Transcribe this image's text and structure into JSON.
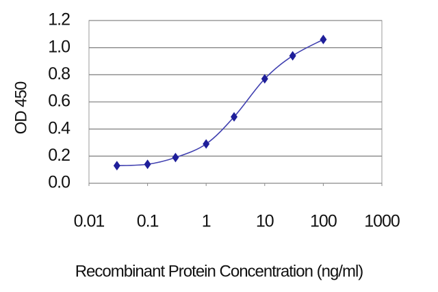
{
  "chart_data": {
    "type": "scatter",
    "x_label": "Recombinant Protein Concentration (ng/ml)",
    "y_label": "OD 450",
    "x": [
      0.03,
      0.1,
      0.3,
      1,
      3,
      10,
      30,
      100
    ],
    "series": [
      {
        "color": "#1f1f9a",
        "values": [
          0.13,
          0.14,
          0.19,
          0.29,
          0.49,
          0.77,
          0.94,
          1.06
        ]
      }
    ],
    "xscale": "log",
    "xlim": [
      0.01,
      1000
    ],
    "xticks": [
      0.01,
      0.1,
      1,
      10,
      100,
      1000
    ],
    "ylim": [
      0,
      1.2
    ],
    "yticks": [
      {
        "value": 0,
        "label": "0.0"
      },
      0.2,
      0.4,
      0.6,
      0.8,
      {
        "value": 1,
        "label": "1.0"
      },
      1.2
    ],
    "grid": true
  }
}
